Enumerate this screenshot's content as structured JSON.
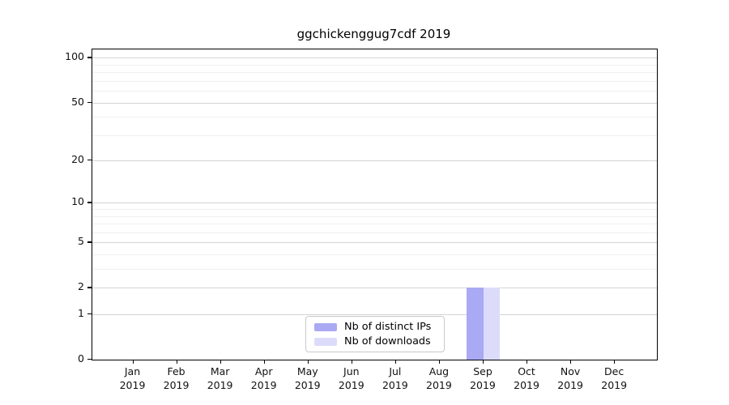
{
  "figure": {
    "title": "ggchickenggug7cdf 2019"
  },
  "chart_data": {
    "type": "bar",
    "title": "ggchickenggug7cdf 2019",
    "categories": [
      "Jan",
      "Feb",
      "Mar",
      "Apr",
      "May",
      "Jun",
      "Jul",
      "Aug",
      "Sep",
      "Oct",
      "Nov",
      "Dec"
    ],
    "year_label": "2019",
    "series": [
      {
        "name": "Nb of distinct IPs",
        "color": "#a9a9f4",
        "values": [
          0,
          0,
          0,
          0,
          0,
          0,
          0,
          0,
          2,
          0,
          0,
          0
        ]
      },
      {
        "name": "Nb of downloads",
        "color": "#dcdcfa",
        "values": [
          0,
          0,
          0,
          0,
          0,
          0,
          0,
          0,
          2,
          0,
          0,
          0
        ]
      }
    ],
    "xlabel": "",
    "ylabel": "",
    "yscale": "log1p",
    "ylim": [
      0,
      114
    ],
    "yticks": [
      0,
      1,
      2,
      5,
      10,
      20,
      50,
      100
    ],
    "minor_yticks": [
      3,
      4,
      6,
      7,
      8,
      9,
      30,
      40,
      60,
      70,
      80,
      90
    ],
    "grid": "horizontal",
    "legend_position": "lower center"
  }
}
